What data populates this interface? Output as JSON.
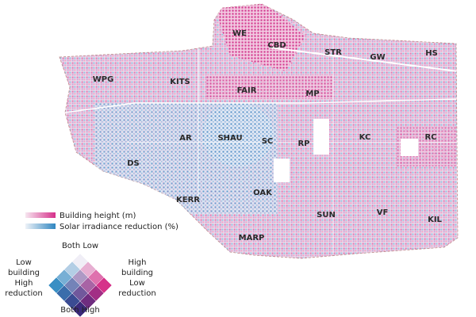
{
  "map": {
    "labels": [
      "WE",
      "CBD",
      "STR",
      "GW",
      "HS",
      "WPG",
      "KITS",
      "FAIR",
      "MP",
      "AR",
      "SHAU",
      "SC",
      "RP",
      "KC",
      "RC",
      "DS",
      "OAK",
      "KERR",
      "SUN",
      "VF",
      "KIL",
      "MARP"
    ]
  },
  "legend": {
    "building_height": "Building height (m)",
    "solar_reduction": "Solar irradiance reduction (%)",
    "top": "Both Low",
    "bottom": "Both High",
    "left": [
      "Low",
      "building",
      "High",
      "reduction"
    ],
    "right": [
      "High",
      "building",
      "Low",
      "reduction"
    ]
  }
}
